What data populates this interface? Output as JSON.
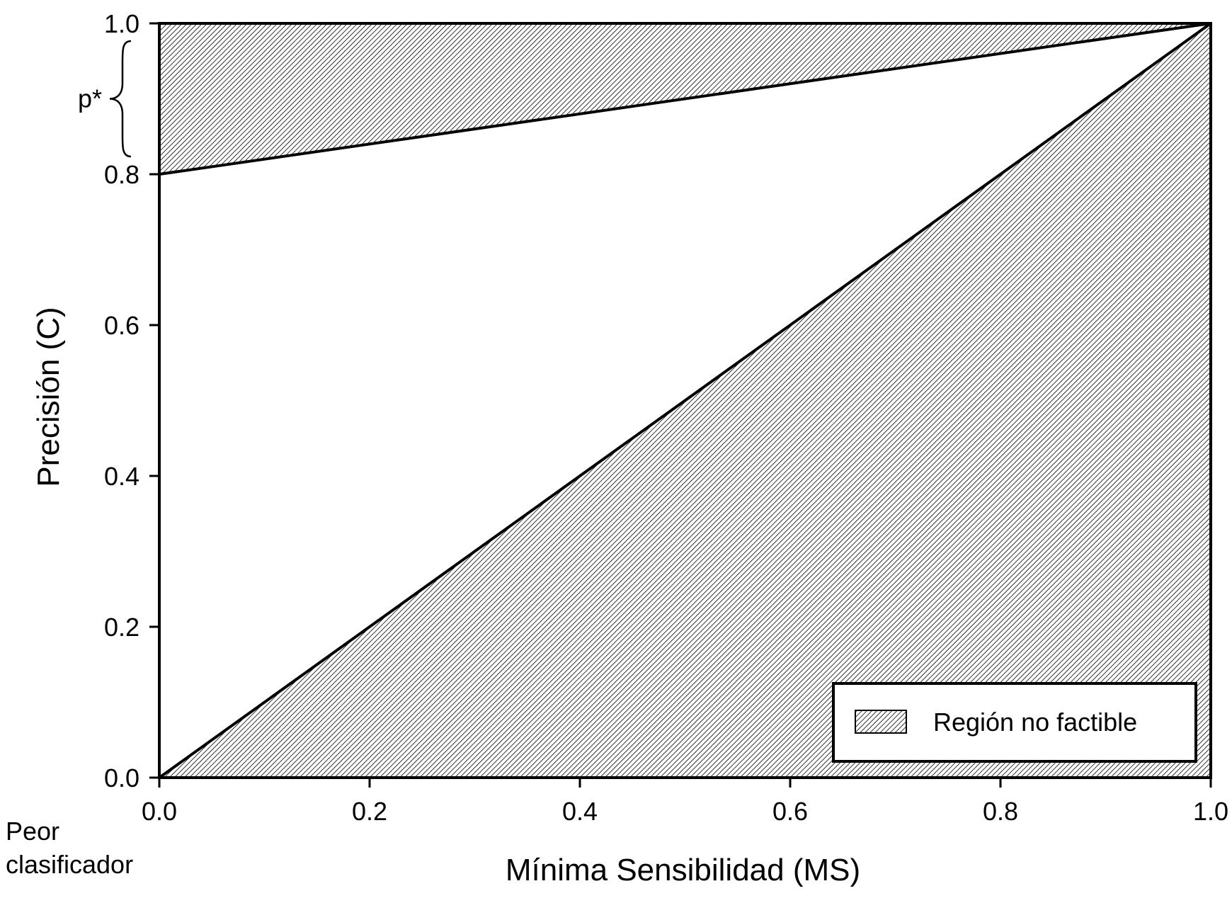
{
  "chart_data": {
    "type": "area",
    "xlabel": "Mínima Sensibilidad (MS)",
    "ylabel": "Precisión (C)",
    "xlim": [
      0.0,
      1.0
    ],
    "ylim": [
      0.0,
      1.0
    ],
    "x_ticks": [
      "0.0",
      "0.2",
      "0.4",
      "0.6",
      "0.8",
      "1.0"
    ],
    "y_ticks": [
      "0.0",
      "0.2",
      "0.4",
      "0.6",
      "0.8",
      "1.0"
    ],
    "grid": false,
    "legend_position": "bottom-right",
    "legend": [
      "Región no factible"
    ],
    "regions": [
      {
        "name": "Región no factible",
        "pattern": "hatched",
        "polygon_x": [
          0.0,
          1.0,
          0.0
        ],
        "polygon_y": [
          0.8,
          1.0,
          1.0
        ]
      },
      {
        "name": "Región no factible",
        "pattern": "hatched",
        "polygon_x": [
          0.0,
          1.0,
          1.0
        ],
        "polygon_y": [
          0.0,
          1.0,
          0.0
        ]
      }
    ],
    "lines": [
      {
        "x": [
          0.0,
          1.0
        ],
        "y": [
          0.8,
          1.0
        ]
      },
      {
        "x": [
          0.0,
          1.0
        ],
        "y": [
          0.0,
          1.0
        ]
      }
    ],
    "annotations": {
      "brace_label": "p*",
      "brace_range_y": [
        0.8,
        1.0
      ],
      "corner_label_line1": "Peor",
      "corner_label_line2": "clasificador"
    }
  }
}
